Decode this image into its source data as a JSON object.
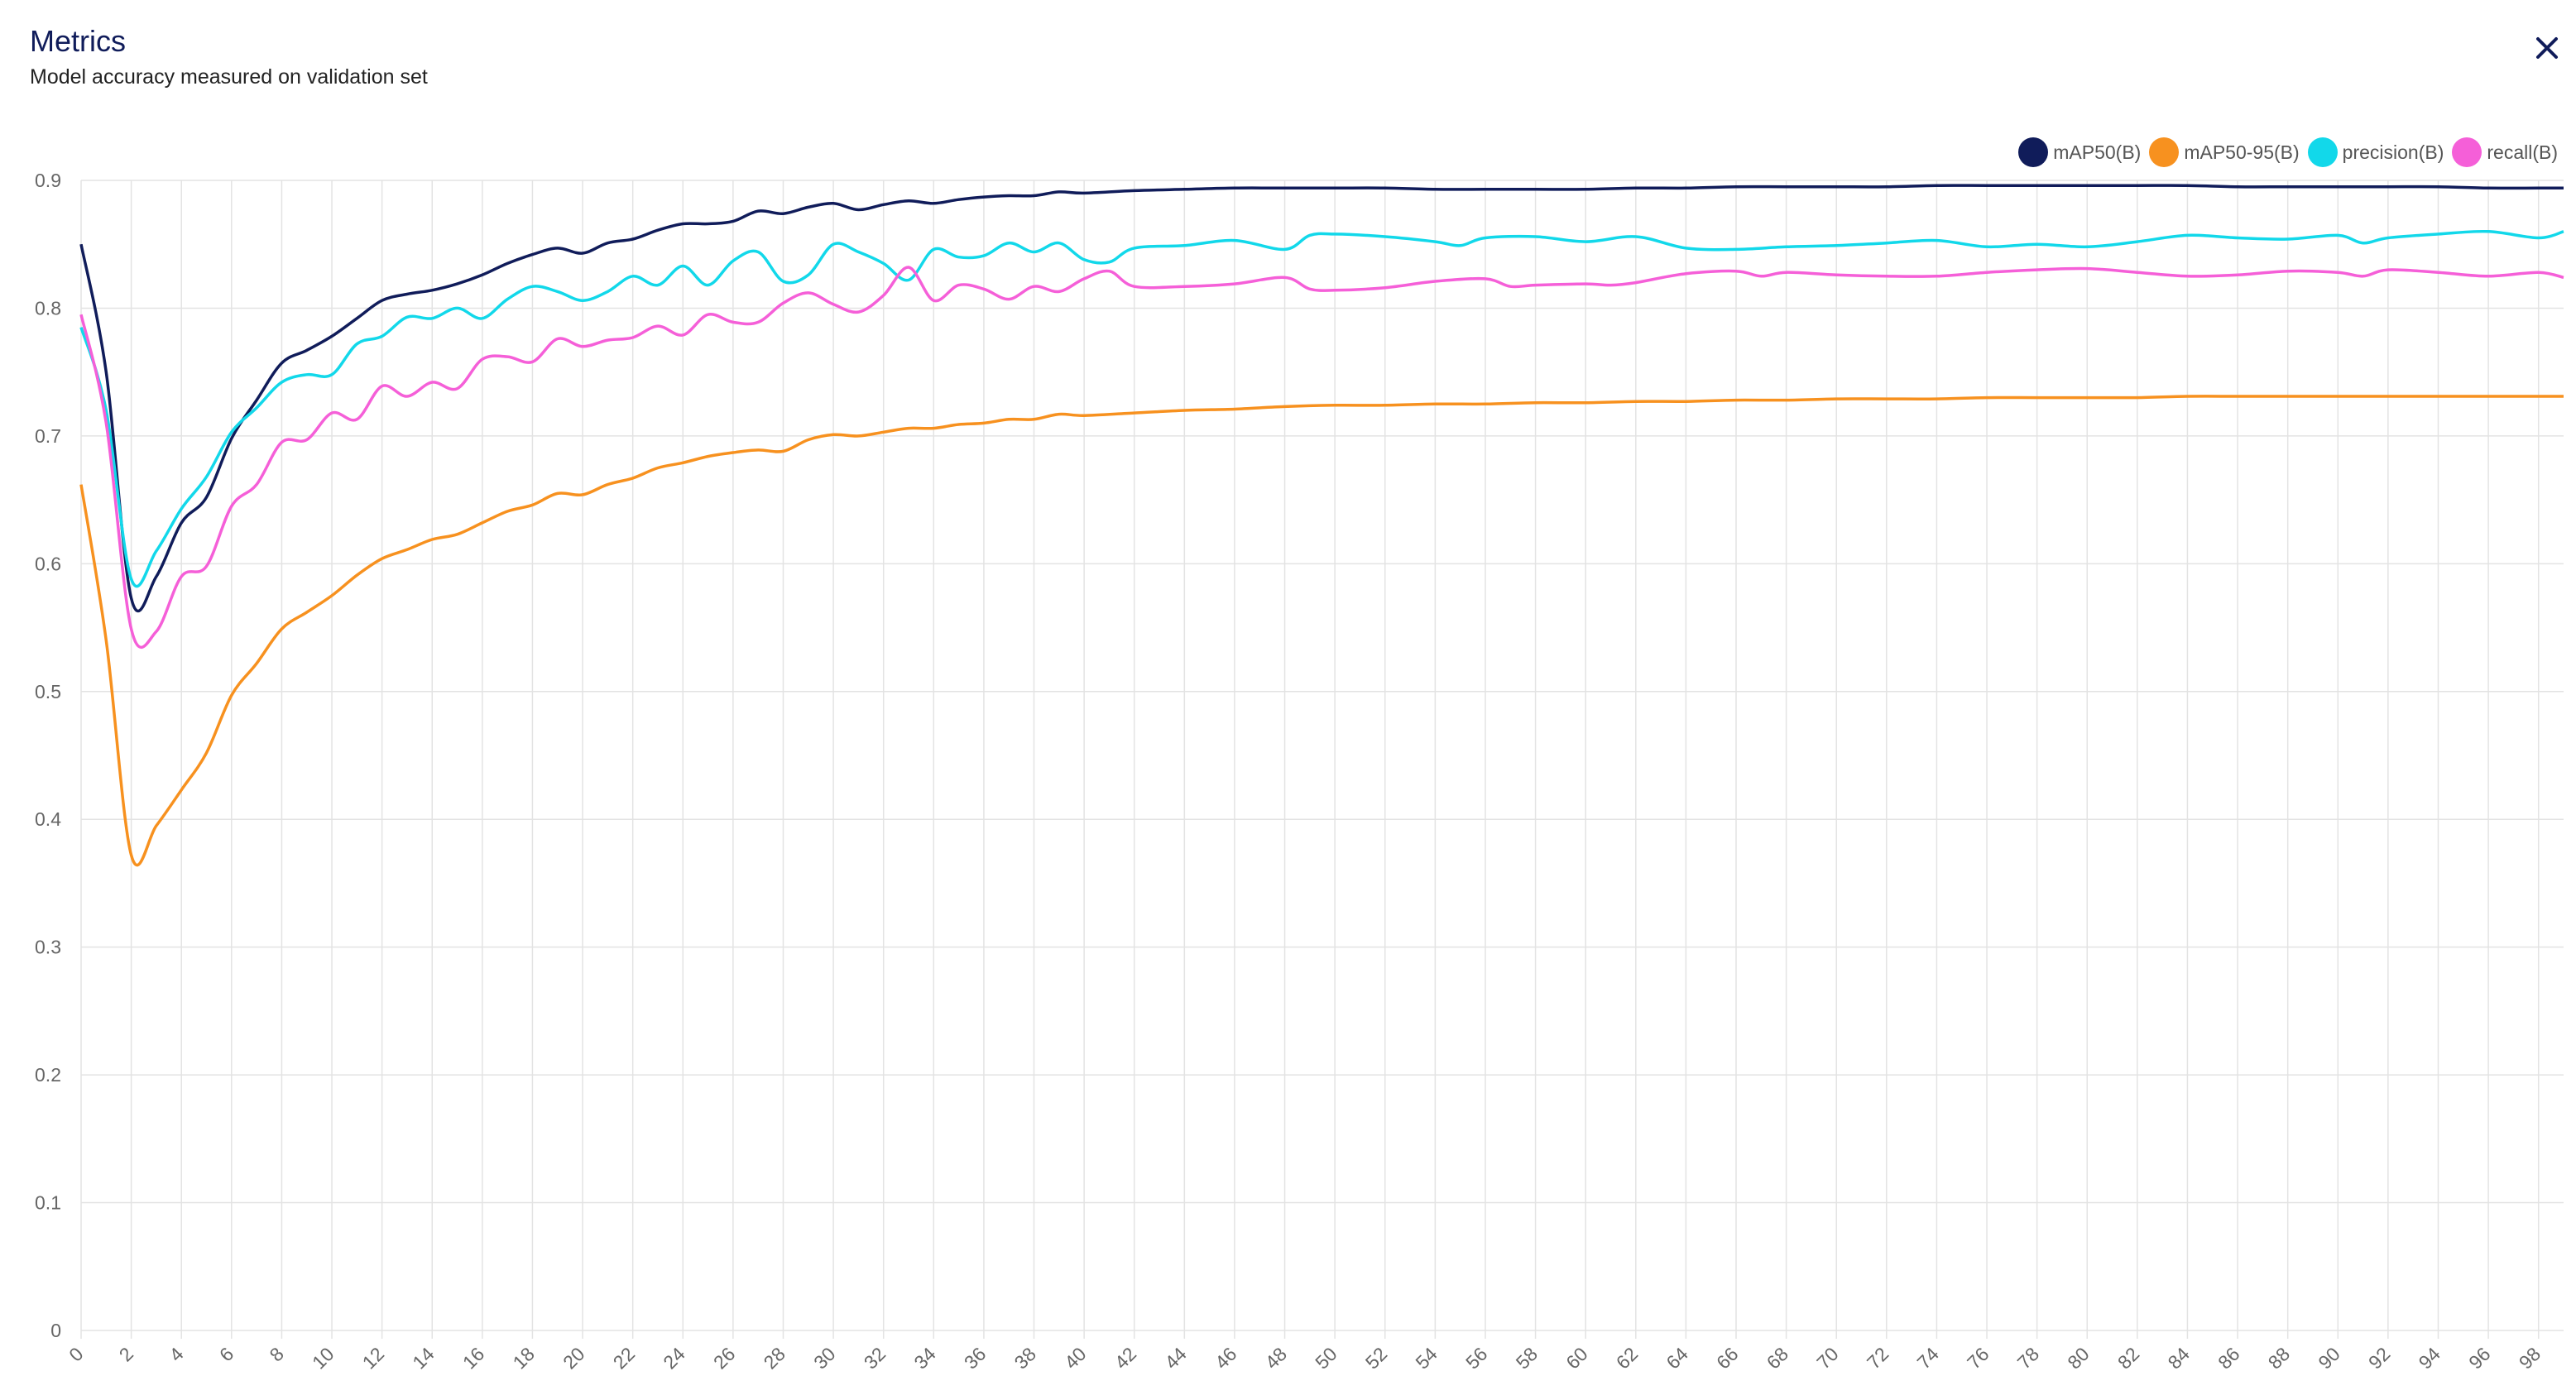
{
  "header": {
    "title": "Metrics",
    "subtitle": "Model accuracy measured on validation set"
  },
  "icons": {
    "close": "close-icon"
  },
  "chart_data": {
    "type": "line",
    "title": "Metrics",
    "subtitle": "Model accuracy measured on validation set",
    "xlabel": "",
    "ylabel": "",
    "xlim": [
      0,
      99
    ],
    "ylim": [
      0,
      0.9
    ],
    "xticks": [
      0,
      2,
      4,
      6,
      8,
      10,
      12,
      14,
      16,
      18,
      20,
      22,
      24,
      26,
      28,
      30,
      32,
      34,
      36,
      38,
      40,
      42,
      44,
      46,
      48,
      50,
      52,
      54,
      56,
      58,
      60,
      62,
      64,
      66,
      68,
      70,
      72,
      74,
      76,
      78,
      80,
      82,
      84,
      86,
      88,
      90,
      92,
      94,
      96,
      98
    ],
    "yticks": [
      0,
      0.1,
      0.2,
      0.3,
      0.4,
      0.5,
      0.6,
      0.7,
      0.8,
      0.9
    ],
    "grid": true,
    "legend_position": "top-right",
    "series": [
      {
        "name": "mAP50(B)",
        "color": "#101c5a",
        "points": [
          [
            0,
            0.85
          ],
          [
            1,
            0.75
          ],
          [
            2,
            0.573
          ],
          [
            3,
            0.59
          ],
          [
            4,
            0.632
          ],
          [
            5,
            0.652
          ],
          [
            6,
            0.698
          ],
          [
            7,
            0.728
          ],
          [
            8,
            0.757
          ],
          [
            9,
            0.767
          ],
          [
            10,
            0.778
          ],
          [
            11,
            0.792
          ],
          [
            12,
            0.806
          ],
          [
            13,
            0.811
          ],
          [
            14,
            0.814
          ],
          [
            15,
            0.819
          ],
          [
            16,
            0.826
          ],
          [
            17,
            0.835
          ],
          [
            18,
            0.842
          ],
          [
            19,
            0.847
          ],
          [
            20,
            0.843
          ],
          [
            21,
            0.851
          ],
          [
            22,
            0.854
          ],
          [
            23,
            0.861
          ],
          [
            24,
            0.866
          ],
          [
            25,
            0.866
          ],
          [
            26,
            0.868
          ],
          [
            27,
            0.876
          ],
          [
            28,
            0.874
          ],
          [
            29,
            0.879
          ],
          [
            30,
            0.882
          ],
          [
            31,
            0.877
          ],
          [
            32,
            0.881
          ],
          [
            33,
            0.884
          ],
          [
            34,
            0.882
          ],
          [
            35,
            0.885
          ],
          [
            36,
            0.887
          ],
          [
            37,
            0.888
          ],
          [
            38,
            0.888
          ],
          [
            39,
            0.891
          ],
          [
            40,
            0.89
          ],
          [
            42,
            0.892
          ],
          [
            44,
            0.893
          ],
          [
            46,
            0.894
          ],
          [
            48,
            0.894
          ],
          [
            50,
            0.894
          ],
          [
            52,
            0.894
          ],
          [
            54,
            0.893
          ],
          [
            56,
            0.893
          ],
          [
            58,
            0.893
          ],
          [
            60,
            0.893
          ],
          [
            62,
            0.894
          ],
          [
            64,
            0.894
          ],
          [
            66,
            0.895
          ],
          [
            68,
            0.895
          ],
          [
            70,
            0.895
          ],
          [
            72,
            0.895
          ],
          [
            74,
            0.896
          ],
          [
            76,
            0.896
          ],
          [
            78,
            0.896
          ],
          [
            80,
            0.896
          ],
          [
            82,
            0.896
          ],
          [
            84,
            0.896
          ],
          [
            86,
            0.895
          ],
          [
            88,
            0.895
          ],
          [
            90,
            0.895
          ],
          [
            92,
            0.895
          ],
          [
            94,
            0.895
          ],
          [
            96,
            0.894
          ],
          [
            98,
            0.894
          ],
          [
            99,
            0.894
          ]
        ]
      },
      {
        "name": "mAP50-95(B)",
        "color": "#f7911f",
        "points": [
          [
            0,
            0.662
          ],
          [
            1,
            0.54
          ],
          [
            2,
            0.372
          ],
          [
            3,
            0.395
          ],
          [
            4,
            0.423
          ],
          [
            5,
            0.452
          ],
          [
            6,
            0.497
          ],
          [
            7,
            0.522
          ],
          [
            8,
            0.549
          ],
          [
            9,
            0.562
          ],
          [
            10,
            0.575
          ],
          [
            11,
            0.591
          ],
          [
            12,
            0.604
          ],
          [
            13,
            0.611
          ],
          [
            14,
            0.619
          ],
          [
            15,
            0.623
          ],
          [
            16,
            0.632
          ],
          [
            17,
            0.641
          ],
          [
            18,
            0.646
          ],
          [
            19,
            0.655
          ],
          [
            20,
            0.654
          ],
          [
            21,
            0.662
          ],
          [
            22,
            0.667
          ],
          [
            23,
            0.675
          ],
          [
            24,
            0.679
          ],
          [
            25,
            0.684
          ],
          [
            26,
            0.687
          ],
          [
            27,
            0.689
          ],
          [
            28,
            0.688
          ],
          [
            29,
            0.697
          ],
          [
            30,
            0.701
          ],
          [
            31,
            0.7
          ],
          [
            32,
            0.703
          ],
          [
            33,
            0.706
          ],
          [
            34,
            0.706
          ],
          [
            35,
            0.709
          ],
          [
            36,
            0.71
          ],
          [
            37,
            0.713
          ],
          [
            38,
            0.713
          ],
          [
            39,
            0.717
          ],
          [
            40,
            0.716
          ],
          [
            42,
            0.718
          ],
          [
            44,
            0.72
          ],
          [
            46,
            0.721
          ],
          [
            48,
            0.723
          ],
          [
            50,
            0.724
          ],
          [
            52,
            0.724
          ],
          [
            54,
            0.725
          ],
          [
            56,
            0.725
          ],
          [
            58,
            0.726
          ],
          [
            60,
            0.726
          ],
          [
            62,
            0.727
          ],
          [
            64,
            0.727
          ],
          [
            66,
            0.728
          ],
          [
            68,
            0.728
          ],
          [
            70,
            0.729
          ],
          [
            72,
            0.729
          ],
          [
            74,
            0.729
          ],
          [
            76,
            0.73
          ],
          [
            78,
            0.73
          ],
          [
            80,
            0.73
          ],
          [
            82,
            0.73
          ],
          [
            84,
            0.731
          ],
          [
            86,
            0.731
          ],
          [
            88,
            0.731
          ],
          [
            90,
            0.731
          ],
          [
            92,
            0.731
          ],
          [
            94,
            0.731
          ],
          [
            96,
            0.731
          ],
          [
            98,
            0.731
          ],
          [
            99,
            0.731
          ]
        ]
      },
      {
        "name": "precision(B)",
        "color": "#12d8ea",
        "points": [
          [
            0,
            0.785
          ],
          [
            1,
            0.72
          ],
          [
            2,
            0.588
          ],
          [
            3,
            0.61
          ],
          [
            4,
            0.643
          ],
          [
            5,
            0.668
          ],
          [
            6,
            0.703
          ],
          [
            7,
            0.722
          ],
          [
            8,
            0.742
          ],
          [
            9,
            0.748
          ],
          [
            10,
            0.748
          ],
          [
            11,
            0.772
          ],
          [
            12,
            0.778
          ],
          [
            13,
            0.793
          ],
          [
            14,
            0.792
          ],
          [
            15,
            0.8
          ],
          [
            16,
            0.792
          ],
          [
            17,
            0.807
          ],
          [
            18,
            0.817
          ],
          [
            19,
            0.813
          ],
          [
            20,
            0.806
          ],
          [
            21,
            0.813
          ],
          [
            22,
            0.825
          ],
          [
            23,
            0.818
          ],
          [
            24,
            0.833
          ],
          [
            25,
            0.818
          ],
          [
            26,
            0.837
          ],
          [
            27,
            0.844
          ],
          [
            28,
            0.821
          ],
          [
            29,
            0.826
          ],
          [
            30,
            0.85
          ],
          [
            31,
            0.844
          ],
          [
            32,
            0.835
          ],
          [
            33,
            0.822
          ],
          [
            34,
            0.846
          ],
          [
            35,
            0.84
          ],
          [
            36,
            0.841
          ],
          [
            37,
            0.851
          ],
          [
            38,
            0.844
          ],
          [
            39,
            0.851
          ],
          [
            40,
            0.838
          ],
          [
            41,
            0.836
          ],
          [
            42,
            0.847
          ],
          [
            44,
            0.849
          ],
          [
            46,
            0.853
          ],
          [
            48,
            0.846
          ],
          [
            49,
            0.857
          ],
          [
            50,
            0.858
          ],
          [
            52,
            0.856
          ],
          [
            54,
            0.852
          ],
          [
            55,
            0.849
          ],
          [
            56,
            0.855
          ],
          [
            58,
            0.856
          ],
          [
            60,
            0.852
          ],
          [
            62,
            0.856
          ],
          [
            64,
            0.847
          ],
          [
            66,
            0.846
          ],
          [
            68,
            0.848
          ],
          [
            70,
            0.849
          ],
          [
            72,
            0.851
          ],
          [
            74,
            0.853
          ],
          [
            76,
            0.848
          ],
          [
            78,
            0.85
          ],
          [
            80,
            0.848
          ],
          [
            82,
            0.852
          ],
          [
            84,
            0.857
          ],
          [
            86,
            0.855
          ],
          [
            88,
            0.854
          ],
          [
            90,
            0.857
          ],
          [
            91,
            0.851
          ],
          [
            92,
            0.855
          ],
          [
            94,
            0.858
          ],
          [
            96,
            0.86
          ],
          [
            98,
            0.855
          ],
          [
            99,
            0.86
          ]
        ]
      },
      {
        "name": "recall(B)",
        "color": "#f55fd8",
        "points": [
          [
            0,
            0.795
          ],
          [
            1,
            0.71
          ],
          [
            2,
            0.549
          ],
          [
            3,
            0.547
          ],
          [
            4,
            0.59
          ],
          [
            5,
            0.598
          ],
          [
            6,
            0.645
          ],
          [
            7,
            0.662
          ],
          [
            8,
            0.695
          ],
          [
            9,
            0.697
          ],
          [
            10,
            0.718
          ],
          [
            11,
            0.713
          ],
          [
            12,
            0.739
          ],
          [
            13,
            0.731
          ],
          [
            14,
            0.742
          ],
          [
            15,
            0.737
          ],
          [
            16,
            0.76
          ],
          [
            17,
            0.762
          ],
          [
            18,
            0.758
          ],
          [
            19,
            0.776
          ],
          [
            20,
            0.77
          ],
          [
            21,
            0.775
          ],
          [
            22,
            0.777
          ],
          [
            23,
            0.786
          ],
          [
            24,
            0.779
          ],
          [
            25,
            0.795
          ],
          [
            26,
            0.789
          ],
          [
            27,
            0.789
          ],
          [
            28,
            0.804
          ],
          [
            29,
            0.812
          ],
          [
            30,
            0.803
          ],
          [
            31,
            0.797
          ],
          [
            32,
            0.81
          ],
          [
            33,
            0.832
          ],
          [
            34,
            0.806
          ],
          [
            35,
            0.818
          ],
          [
            36,
            0.815
          ],
          [
            37,
            0.807
          ],
          [
            38,
            0.817
          ],
          [
            39,
            0.813
          ],
          [
            40,
            0.823
          ],
          [
            41,
            0.829
          ],
          [
            42,
            0.817
          ],
          [
            44,
            0.817
          ],
          [
            46,
            0.819
          ],
          [
            48,
            0.824
          ],
          [
            49,
            0.815
          ],
          [
            50,
            0.814
          ],
          [
            52,
            0.816
          ],
          [
            54,
            0.821
          ],
          [
            56,
            0.823
          ],
          [
            57,
            0.817
          ],
          [
            58,
            0.818
          ],
          [
            60,
            0.819
          ],
          [
            61,
            0.818
          ],
          [
            62,
            0.82
          ],
          [
            64,
            0.827
          ],
          [
            66,
            0.829
          ],
          [
            67,
            0.825
          ],
          [
            68,
            0.828
          ],
          [
            70,
            0.826
          ],
          [
            72,
            0.825
          ],
          [
            74,
            0.825
          ],
          [
            76,
            0.828
          ],
          [
            78,
            0.83
          ],
          [
            80,
            0.831
          ],
          [
            82,
            0.828
          ],
          [
            84,
            0.825
          ],
          [
            86,
            0.826
          ],
          [
            88,
            0.829
          ],
          [
            90,
            0.828
          ],
          [
            91,
            0.825
          ],
          [
            92,
            0.83
          ],
          [
            94,
            0.828
          ],
          [
            96,
            0.825
          ],
          [
            98,
            0.828
          ],
          [
            99,
            0.824
          ]
        ]
      }
    ]
  }
}
